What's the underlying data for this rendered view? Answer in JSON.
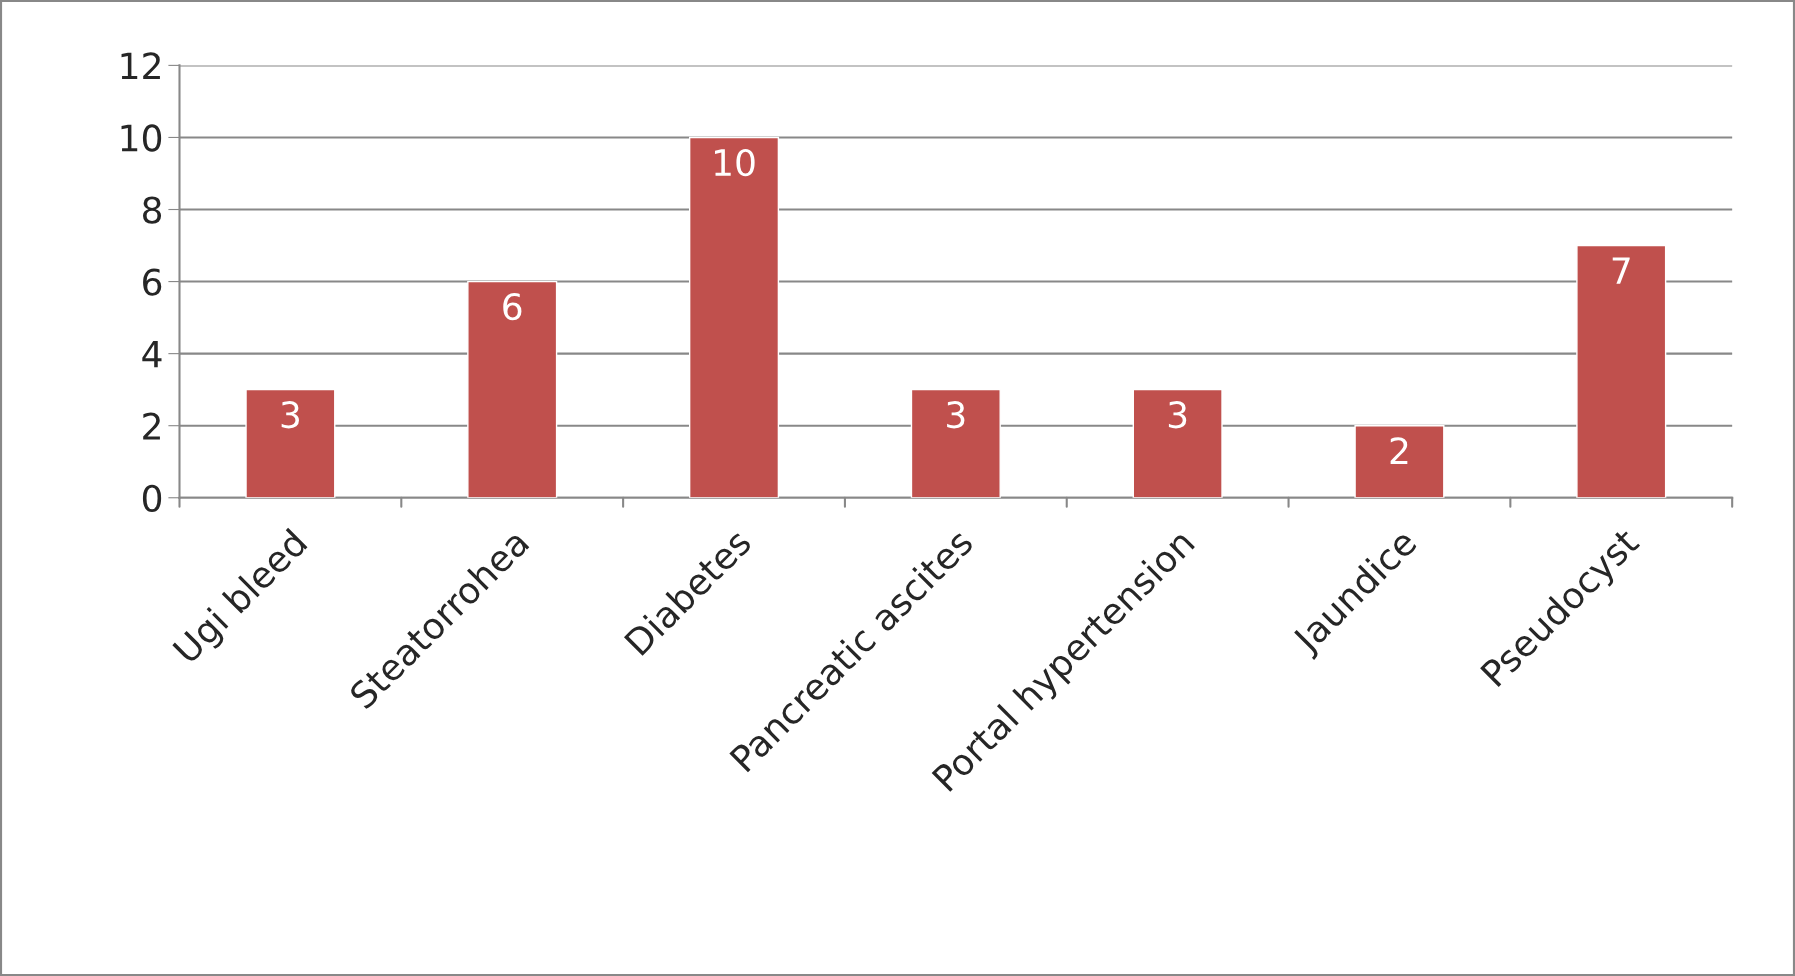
{
  "chart_data": {
    "type": "bar",
    "categories": [
      "Ugi bleed",
      "Steatorrohea",
      "Diabetes",
      "Pancreatic ascites",
      "Portal hypertension",
      "Jaundice",
      "Pseudocyst"
    ],
    "values": [
      3,
      6,
      10,
      3,
      3,
      2,
      7
    ],
    "color": "#c0504d",
    "ylim": [
      0,
      12
    ],
    "yticks": [
      0,
      2,
      4,
      6,
      8,
      10,
      12
    ],
    "grid": "y",
    "data_labels": true
  }
}
